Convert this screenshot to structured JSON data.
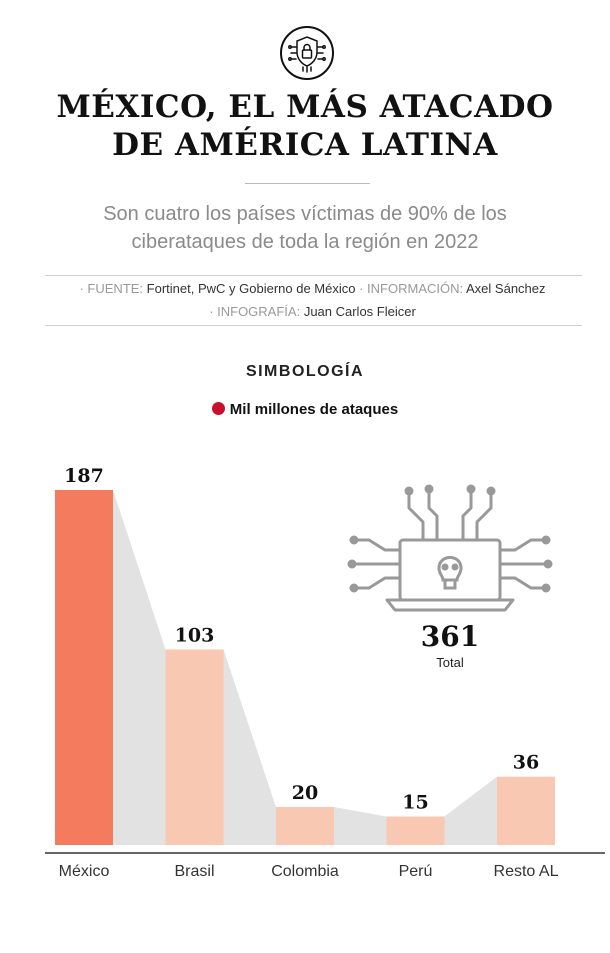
{
  "header": {
    "title_line1": "MÉXICO, EL MÁS ATACADO",
    "title_line2": "DE AMÉRICA LATINA",
    "subtitle_line1": "Son cuatro los países víctimas de 90% de los",
    "subtitle_line2": "ciberataques de toda la región en 2022",
    "icon": "shield-lock-circuit-icon"
  },
  "credits": {
    "source_label": "· FUENTE:",
    "source_value": "Fortinet, PwC y Gobierno de México",
    "info_label": "· INFORMACIÓN:",
    "info_value": "Axel Sánchez",
    "graphic_label": "· INFOGRAFÍA:",
    "graphic_value": "Juan Carlos Fleicer"
  },
  "legend": {
    "heading": "SIMBOLOGÍA",
    "item_label": "Mil millones de ataques",
    "item_color": "#c8102e"
  },
  "total": {
    "value": "361",
    "label": "Total",
    "icon": "laptop-skull-circuit-icon"
  },
  "colors": {
    "highlight_bar": "#f47b5e",
    "bar": "#f8c8b2",
    "connector": "#e2e2e2",
    "baseline": "#333333"
  },
  "chart_data": {
    "type": "bar",
    "categories": [
      "México",
      "Brasil",
      "Colombia",
      "Perú",
      "Resto AL"
    ],
    "values": [
      187,
      103,
      20,
      15,
      36
    ],
    "value_labels": [
      "187",
      "103",
      "20",
      "15",
      "36"
    ],
    "highlight_index": 0,
    "ylim": [
      0,
      187
    ],
    "grid": false,
    "legend_position": "top-center"
  }
}
